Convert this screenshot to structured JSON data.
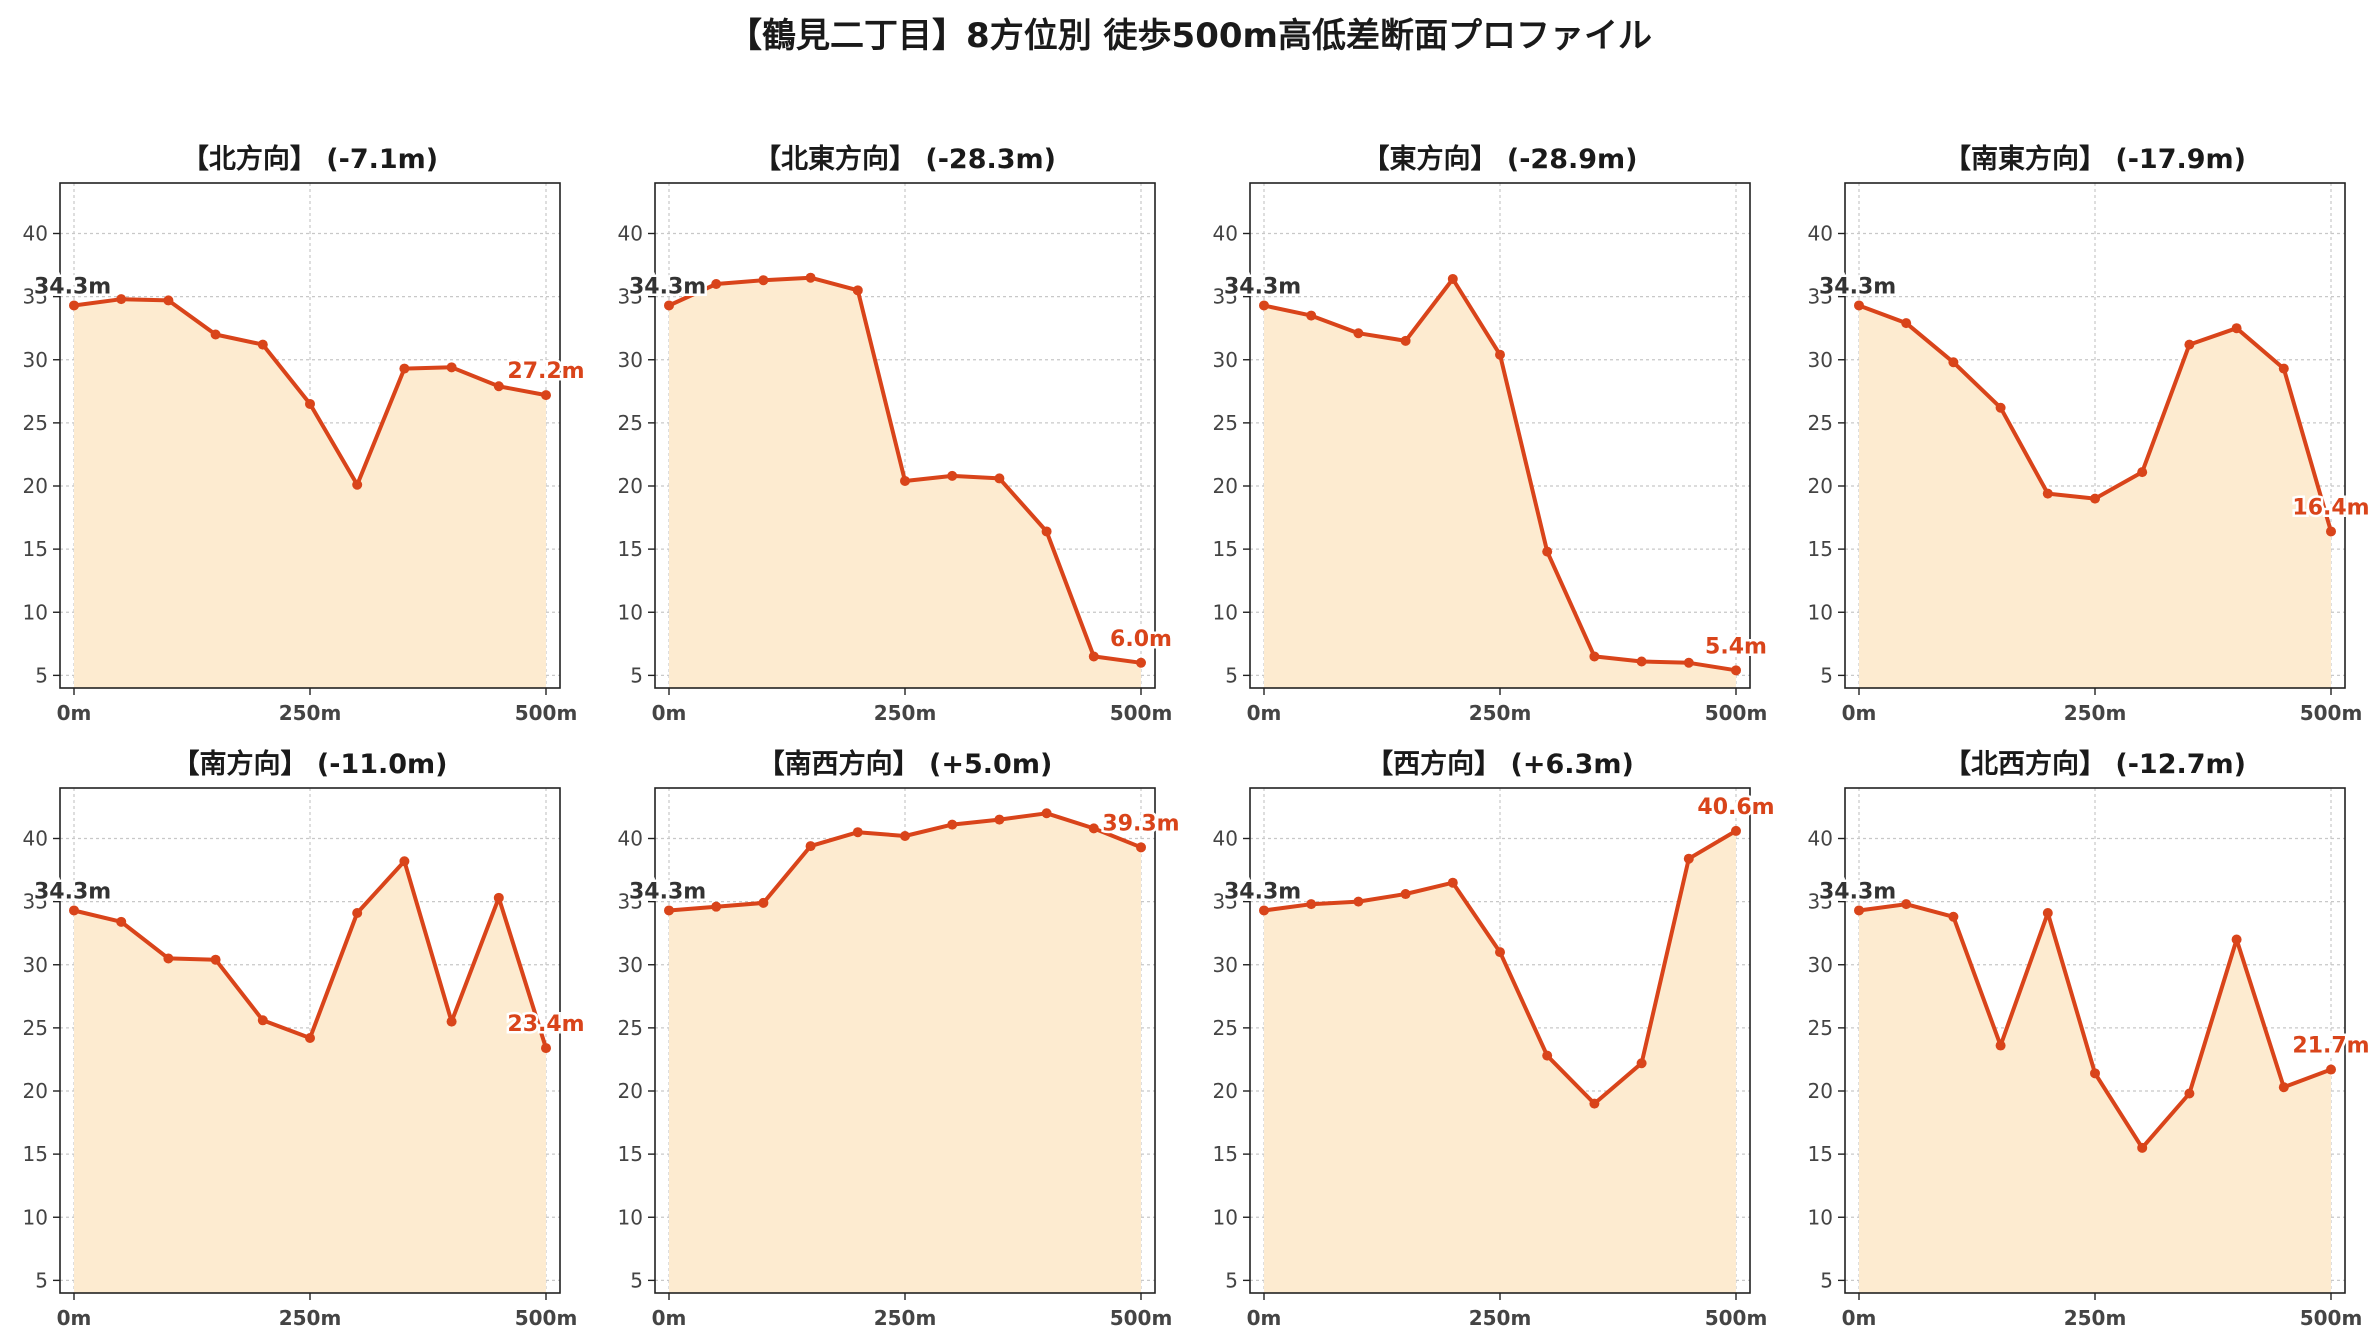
{
  "title": "【鶴見二丁目】8方位別 徒歩500m高低差断面プロファイル",
  "colors": {
    "line": "#d9441a",
    "fill": "#fdebd0",
    "start_label": "#333333",
    "end_label": "#d9441a",
    "grid": "#c8c8c8",
    "axis": "#222222",
    "tick_text": "#444444"
  },
  "chart_data": [
    {
      "type": "area",
      "title": "【北方向】 (-7.1m)",
      "x": [
        0,
        50,
        100,
        150,
        200,
        250,
        300,
        350,
        400,
        450,
        500
      ],
      "y": [
        34.3,
        34.8,
        34.7,
        32.0,
        31.2,
        26.5,
        20.1,
        29.3,
        29.4,
        27.9,
        27.2
      ],
      "xticks": [
        "0m",
        "250m",
        "500m"
      ],
      "yticks": [
        5,
        10,
        15,
        20,
        25,
        30,
        35,
        40
      ],
      "ylim": [
        4,
        44
      ],
      "start_label": "34.3m",
      "end_label": "27.2m",
      "grid": true
    },
    {
      "type": "area",
      "title": "【北東方向】 (-28.3m)",
      "x": [
        0,
        50,
        100,
        150,
        200,
        250,
        300,
        350,
        400,
        450,
        500
      ],
      "y": [
        34.3,
        36.0,
        36.3,
        36.5,
        35.5,
        20.4,
        20.8,
        20.6,
        16.4,
        6.5,
        6.0
      ],
      "xticks": [
        "0m",
        "250m",
        "500m"
      ],
      "yticks": [
        5,
        10,
        15,
        20,
        25,
        30,
        35,
        40
      ],
      "ylim": [
        4,
        44
      ],
      "start_label": "34.3m",
      "end_label": "6.0m",
      "grid": true
    },
    {
      "type": "area",
      "title": "【東方向】 (-28.9m)",
      "x": [
        0,
        50,
        100,
        150,
        200,
        250,
        300,
        350,
        400,
        450,
        500
      ],
      "y": [
        34.3,
        33.5,
        32.1,
        31.5,
        36.4,
        30.4,
        14.8,
        6.5,
        6.1,
        6.0,
        5.4
      ],
      "xticks": [
        "0m",
        "250m",
        "500m"
      ],
      "yticks": [
        5,
        10,
        15,
        20,
        25,
        30,
        35,
        40
      ],
      "ylim": [
        4,
        44
      ],
      "start_label": "34.3m",
      "end_label": "5.4m",
      "grid": true
    },
    {
      "type": "area",
      "title": "【南東方向】 (-17.9m)",
      "x": [
        0,
        50,
        100,
        150,
        200,
        250,
        300,
        350,
        400,
        450,
        500
      ],
      "y": [
        34.3,
        32.9,
        29.8,
        26.2,
        19.4,
        19.0,
        21.1,
        31.2,
        32.5,
        29.3,
        16.4
      ],
      "xticks": [
        "0m",
        "250m",
        "500m"
      ],
      "yticks": [
        5,
        10,
        15,
        20,
        25,
        30,
        35,
        40
      ],
      "ylim": [
        4,
        44
      ],
      "start_label": "34.3m",
      "end_label": "16.4m",
      "grid": true
    },
    {
      "type": "area",
      "title": "【南方向】 (-11.0m)",
      "x": [
        0,
        50,
        100,
        150,
        200,
        250,
        300,
        350,
        400,
        450,
        500
      ],
      "y": [
        34.3,
        33.4,
        30.5,
        30.4,
        25.6,
        24.2,
        34.1,
        38.2,
        25.5,
        35.3,
        23.4
      ],
      "xticks": [
        "0m",
        "250m",
        "500m"
      ],
      "yticks": [
        5,
        10,
        15,
        20,
        25,
        30,
        35,
        40
      ],
      "ylim": [
        4,
        44
      ],
      "start_label": "34.3m",
      "end_label": "23.4m",
      "grid": true
    },
    {
      "type": "area",
      "title": "【南西方向】 (+5.0m)",
      "x": [
        0,
        50,
        100,
        150,
        200,
        250,
        300,
        350,
        400,
        450,
        500
      ],
      "y": [
        34.3,
        34.6,
        34.9,
        39.4,
        40.5,
        40.2,
        41.1,
        41.5,
        42.0,
        40.8,
        39.3
      ],
      "xticks": [
        "0m",
        "250m",
        "500m"
      ],
      "yticks": [
        5,
        10,
        15,
        20,
        25,
        30,
        35,
        40
      ],
      "ylim": [
        4,
        44
      ],
      "start_label": "34.3m",
      "end_label": "39.3m",
      "grid": true
    },
    {
      "type": "area",
      "title": "【西方向】 (+6.3m)",
      "x": [
        0,
        50,
        100,
        150,
        200,
        250,
        300,
        350,
        400,
        450,
        500
      ],
      "y": [
        34.3,
        34.8,
        35.0,
        35.6,
        36.5,
        31.0,
        22.8,
        19.0,
        22.2,
        38.4,
        40.6
      ],
      "xticks": [
        "0m",
        "250m",
        "500m"
      ],
      "yticks": [
        5,
        10,
        15,
        20,
        25,
        30,
        35,
        40
      ],
      "ylim": [
        4,
        44
      ],
      "start_label": "34.3m",
      "end_label": "40.6m",
      "grid": true
    },
    {
      "type": "area",
      "title": "【北西方向】 (-12.7m)",
      "x": [
        0,
        50,
        100,
        150,
        200,
        250,
        300,
        350,
        400,
        450,
        500
      ],
      "y": [
        34.3,
        34.8,
        33.8,
        23.6,
        34.1,
        21.4,
        15.5,
        19.8,
        32.0,
        20.3,
        21.7
      ],
      "xticks": [
        "0m",
        "250m",
        "500m"
      ],
      "yticks": [
        5,
        10,
        15,
        20,
        25,
        30,
        35,
        40
      ],
      "ylim": [
        4,
        44
      ],
      "start_label": "34.3m",
      "end_label": "21.7m",
      "grid": true
    }
  ]
}
